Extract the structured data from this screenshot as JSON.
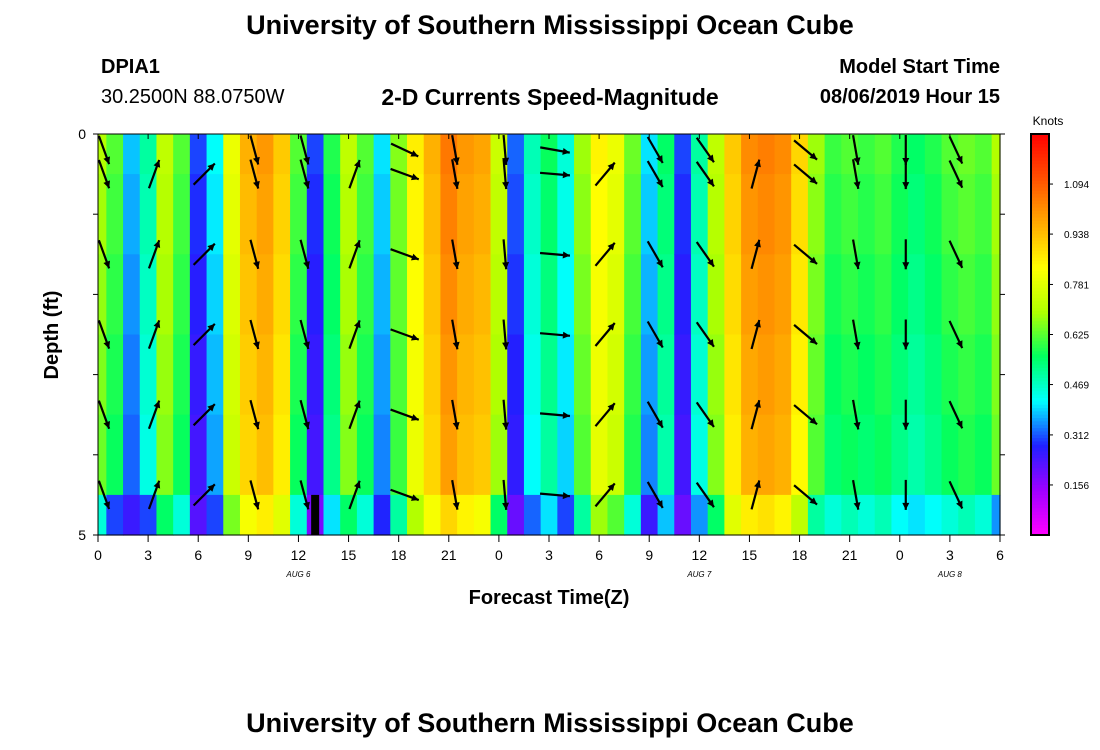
{
  "page": {
    "title_top": "University of Southern Mississippi Ocean Cube",
    "title_bottom": "University of Southern Mississippi Ocean Cube",
    "station_id": "DPIA1",
    "station_coords": "30.2500N 88.0750W",
    "chart_title": "2-D Currents Speed-Magnitude",
    "model_start_label": "Model Start Time",
    "model_start_value": "08/06/2019 Hour 15"
  },
  "chart_data": {
    "type": "heatmap",
    "title": "2-D Currents Speed-Magnitude",
    "xlabel": "Forecast Time(Z)",
    "ylabel": "Depth (ft)",
    "x_ticks": [
      "0",
      "3",
      "6",
      "9",
      "12",
      "15",
      "18",
      "21",
      "0",
      "3",
      "6",
      "9",
      "12",
      "15",
      "18",
      "21",
      "0",
      "3",
      "6"
    ],
    "x_range_hours": [
      0,
      54
    ],
    "date_labels": [
      {
        "text": "AUG 6",
        "hour": 12
      },
      {
        "text": "AUG 7",
        "hour": 36
      },
      {
        "text": "AUG 8",
        "hour": 51
      }
    ],
    "y_ticks": [
      "0",
      "5"
    ],
    "y_range_ft": [
      0,
      5
    ],
    "depth_levels_ft": [
      0,
      0.5,
      1.5,
      2.5,
      3.5,
      4.5
    ],
    "current_time_hour": 13,
    "hours": [
      0,
      1,
      2,
      3,
      4,
      5,
      6,
      7,
      8,
      9,
      10,
      11,
      12,
      13,
      14,
      15,
      16,
      17,
      18,
      19,
      20,
      21,
      22,
      23,
      24,
      25,
      26,
      27,
      28,
      29,
      30,
      31,
      32,
      33,
      34,
      35,
      36,
      37,
      38,
      39,
      40,
      41,
      42,
      43,
      44,
      45,
      46,
      47,
      48,
      49,
      50,
      51,
      52,
      53,
      54
    ],
    "speed_knots": [
      0.7,
      0.62,
      0.38,
      0.5,
      0.72,
      0.62,
      0.3,
      0.42,
      0.8,
      0.96,
      1.0,
      0.92,
      0.62,
      0.3,
      0.58,
      0.72,
      0.62,
      0.4,
      0.66,
      0.86,
      0.96,
      1.05,
      1.0,
      0.98,
      0.74,
      0.32,
      0.48,
      0.56,
      0.45,
      0.68,
      0.85,
      0.8,
      0.64,
      0.4,
      0.55,
      0.3,
      0.5,
      0.72,
      0.92,
      1.02,
      1.04,
      1.02,
      0.9,
      0.68,
      0.6,
      0.62,
      0.6,
      0.62,
      0.58,
      0.55,
      0.58,
      0.62,
      0.64,
      0.62,
      0.7
    ],
    "speed_bottom_knots": [
      0.45,
      0.3,
      0.25,
      0.3,
      0.55,
      0.45,
      0.22,
      0.3,
      0.65,
      0.82,
      0.86,
      0.78,
      0.45,
      0.18,
      0.4,
      0.55,
      0.45,
      0.28,
      0.5,
      0.7,
      0.82,
      0.9,
      0.85,
      0.82,
      0.55,
      0.2,
      0.32,
      0.4,
      0.3,
      0.5,
      0.68,
      0.62,
      0.45,
      0.25,
      0.38,
      0.2,
      0.35,
      0.55,
      0.78,
      0.86,
      0.88,
      0.85,
      0.72,
      0.5,
      0.45,
      0.48,
      0.45,
      0.48,
      0.42,
      0.4,
      0.42,
      0.45,
      0.48,
      0.45,
      0.35
    ],
    "vector_hours": [
      0,
      3,
      6,
      9,
      12,
      15,
      18,
      21,
      24,
      27,
      30,
      33,
      36,
      39,
      42,
      45,
      48,
      51
    ],
    "vector_direction_deg": [
      160,
      20,
      45,
      165,
      165,
      20,
      110,
      170,
      175,
      95,
      40,
      150,
      145,
      15,
      130,
      170,
      180,
      155
    ],
    "vector_direction_deg_surface": [
      160,
      null,
      null,
      165,
      165,
      null,
      115,
      170,
      175,
      100,
      null,
      150,
      145,
      null,
      130,
      170,
      180,
      155
    ],
    "colorbar": {
      "unit_label": "Knots",
      "min": 0.0,
      "max": 1.25,
      "tick_labels": [
        "0.156",
        "0.312",
        "0.469",
        "0.625",
        "0.781",
        "0.938",
        "1.094"
      ],
      "tick_values": [
        0.156,
        0.312,
        0.469,
        0.625,
        0.781,
        0.938,
        1.094
      ],
      "color_stops": [
        "#ff00ff",
        "#a000ff",
        "#2020ff",
        "#00ffff",
        "#00ff60",
        "#b0ff00",
        "#ffff00",
        "#ffaa00",
        "#ff5000",
        "#ff0000"
      ]
    },
    "grid": false
  }
}
